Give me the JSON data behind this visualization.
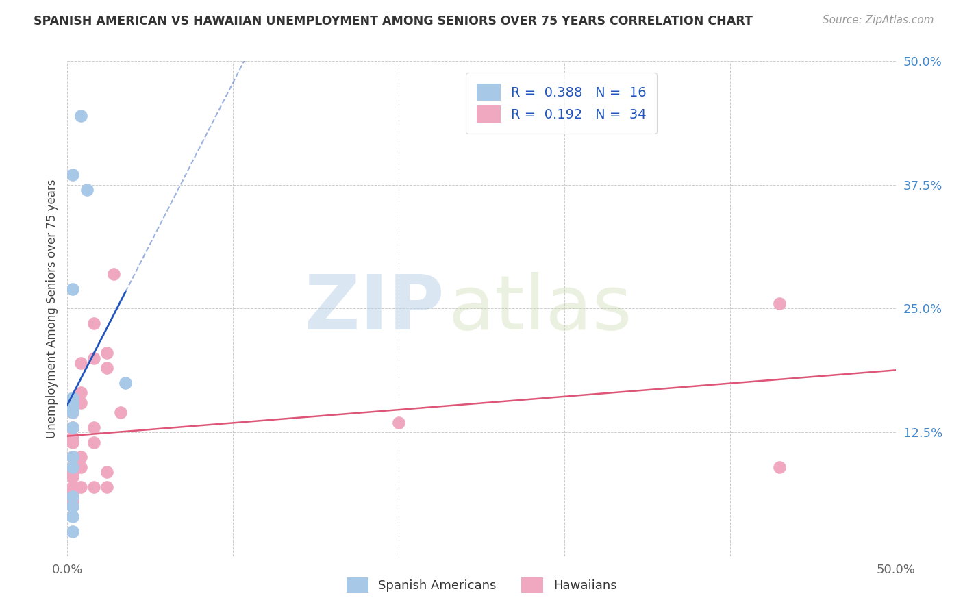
{
  "title": "SPANISH AMERICAN VS HAWAIIAN UNEMPLOYMENT AMONG SENIORS OVER 75 YEARS CORRELATION CHART",
  "source": "Source: ZipAtlas.com",
  "ylabel": "Unemployment Among Seniors over 75 years",
  "watermark_zip": "ZIP",
  "watermark_atlas": "atlas",
  "legend_blue_r": "0.388",
  "legend_blue_n": "16",
  "legend_pink_r": "0.192",
  "legend_pink_n": "34",
  "blue_color": "#a8c8e8",
  "pink_color": "#f0a8c0",
  "blue_line_color": "#2255bb",
  "pink_line_color": "#dd5577",
  "blue_scatter": [
    [
      0.008,
      0.445
    ],
    [
      0.012,
      0.37
    ],
    [
      0.003,
      0.385
    ],
    [
      0.003,
      0.27
    ],
    [
      0.003,
      0.16
    ],
    [
      0.003,
      0.155
    ],
    [
      0.003,
      0.15
    ],
    [
      0.003,
      0.145
    ],
    [
      0.003,
      0.13
    ],
    [
      0.003,
      0.1
    ],
    [
      0.003,
      0.09
    ],
    [
      0.003,
      0.06
    ],
    [
      0.003,
      0.05
    ],
    [
      0.003,
      0.04
    ],
    [
      0.003,
      0.025
    ],
    [
      0.035,
      0.175
    ]
  ],
  "pink_scatter": [
    [
      0.003,
      0.155
    ],
    [
      0.003,
      0.145
    ],
    [
      0.003,
      0.13
    ],
    [
      0.003,
      0.12
    ],
    [
      0.003,
      0.115
    ],
    [
      0.003,
      0.1
    ],
    [
      0.003,
      0.09
    ],
    [
      0.003,
      0.085
    ],
    [
      0.003,
      0.08
    ],
    [
      0.003,
      0.07
    ],
    [
      0.003,
      0.065
    ],
    [
      0.003,
      0.06
    ],
    [
      0.003,
      0.055
    ],
    [
      0.003,
      0.05
    ],
    [
      0.008,
      0.195
    ],
    [
      0.008,
      0.165
    ],
    [
      0.008,
      0.155
    ],
    [
      0.008,
      0.1
    ],
    [
      0.008,
      0.09
    ],
    [
      0.008,
      0.07
    ],
    [
      0.016,
      0.235
    ],
    [
      0.016,
      0.2
    ],
    [
      0.016,
      0.13
    ],
    [
      0.016,
      0.115
    ],
    [
      0.016,
      0.07
    ],
    [
      0.024,
      0.205
    ],
    [
      0.024,
      0.19
    ],
    [
      0.024,
      0.085
    ],
    [
      0.024,
      0.07
    ],
    [
      0.028,
      0.285
    ],
    [
      0.032,
      0.145
    ],
    [
      0.2,
      0.135
    ],
    [
      0.43,
      0.255
    ],
    [
      0.43,
      0.09
    ]
  ],
  "xlim": [
    0,
    0.5
  ],
  "ylim": [
    0,
    0.5
  ],
  "ytick_vals": [
    0.125,
    0.25,
    0.375,
    0.5
  ],
  "ytick_labels": [
    "12.5%",
    "25.0%",
    "37.5%",
    "50.0%"
  ],
  "xtick_vals": [
    0.0,
    0.1,
    0.2,
    0.3,
    0.4,
    0.5
  ],
  "xtick_labels": [
    "0.0%",
    "",
    "",
    "",
    "",
    "50.0%"
  ],
  "background_color": "#ffffff",
  "grid_color": "#cccccc",
  "tick_color": "#4488cc",
  "xlabel_color": "#666666",
  "title_color": "#333333",
  "source_color": "#999999",
  "ylabel_color": "#444444"
}
